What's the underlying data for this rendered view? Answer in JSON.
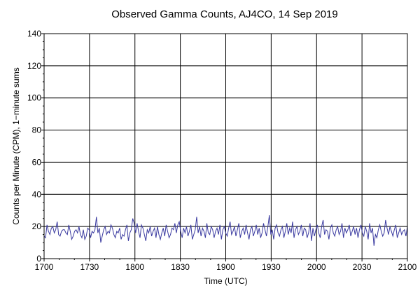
{
  "chart_data": {
    "type": "line",
    "title": "Observed Gamma Counts, AJ4CO, 14 Sep 2019",
    "xlabel": "Time (UTC)",
    "ylabel": "Counts per Minute (CPM), 1−minute sums",
    "xlim": [
      0,
      240
    ],
    "ylim": [
      0,
      140
    ],
    "x_ticks": [
      {
        "value": 0,
        "label": "1700"
      },
      {
        "value": 30,
        "label": "1730"
      },
      {
        "value": 60,
        "label": "1800"
      },
      {
        "value": 90,
        "label": "1830"
      },
      {
        "value": 120,
        "label": "1900"
      },
      {
        "value": 150,
        "label": "1930"
      },
      {
        "value": 180,
        "label": "2000"
      },
      {
        "value": 210,
        "label": "2030"
      },
      {
        "value": 240,
        "label": "2100"
      }
    ],
    "y_ticks": [
      0,
      20,
      40,
      60,
      80,
      100,
      120,
      140
    ],
    "grid": true,
    "line_color": "#3a3aa0",
    "series": [
      {
        "values": [
          14,
          13,
          21,
          17,
          15,
          19,
          20,
          16,
          18,
          23,
          15,
          14,
          17,
          18,
          18,
          16,
          15,
          21,
          17,
          12,
          14,
          17,
          18,
          16,
          20,
          15,
          13,
          18,
          12,
          14,
          19,
          18,
          13,
          17,
          16,
          18,
          26,
          16,
          19,
          10,
          14,
          18,
          20,
          15,
          17,
          16,
          21,
          19,
          15,
          13,
          17,
          16,
          19,
          12,
          15,
          14,
          18,
          21,
          11,
          16,
          18,
          25,
          22,
          16,
          22,
          17,
          13,
          21,
          19,
          15,
          11,
          18,
          16,
          20,
          14,
          17,
          19,
          13,
          20,
          15,
          12,
          16,
          19,
          14,
          21,
          17,
          13,
          15,
          19,
          18,
          22,
          16,
          21,
          23,
          17,
          13,
          19,
          16,
          20,
          14,
          17,
          21,
          12,
          15,
          18,
          26,
          16,
          20,
          14,
          19,
          17,
          13,
          22,
          16,
          15,
          20,
          18,
          13,
          17,
          19,
          15,
          21,
          12,
          18,
          20,
          16,
          14,
          19,
          23,
          15,
          17,
          20,
          14,
          18,
          22,
          13,
          17,
          19,
          15,
          21,
          16,
          12,
          18,
          20,
          14,
          17,
          21,
          15,
          19,
          13,
          16,
          22,
          18,
          14,
          20,
          27,
          15,
          18,
          12,
          19,
          21,
          16,
          14,
          18,
          20,
          13,
          17,
          22,
          15,
          19,
          16,
          23,
          13,
          18,
          20,
          15,
          17,
          21,
          14,
          19,
          18,
          13,
          16,
          22,
          11,
          19,
          14,
          18,
          21,
          16,
          13,
          20,
          24,
          15,
          18,
          17,
          12,
          19,
          21,
          16,
          14,
          18,
          20,
          15,
          17,
          22,
          13,
          19,
          16,
          18,
          21,
          14,
          17,
          20,
          15,
          19,
          13,
          18,
          21,
          16,
          14,
          20,
          17,
          12,
          22,
          16,
          19,
          8,
          15,
          13,
          18,
          21,
          17,
          14,
          16,
          24,
          19,
          15,
          20,
          17,
          14,
          18,
          21,
          13,
          16,
          19,
          15,
          17,
          18,
          14,
          20
        ]
      }
    ]
  }
}
